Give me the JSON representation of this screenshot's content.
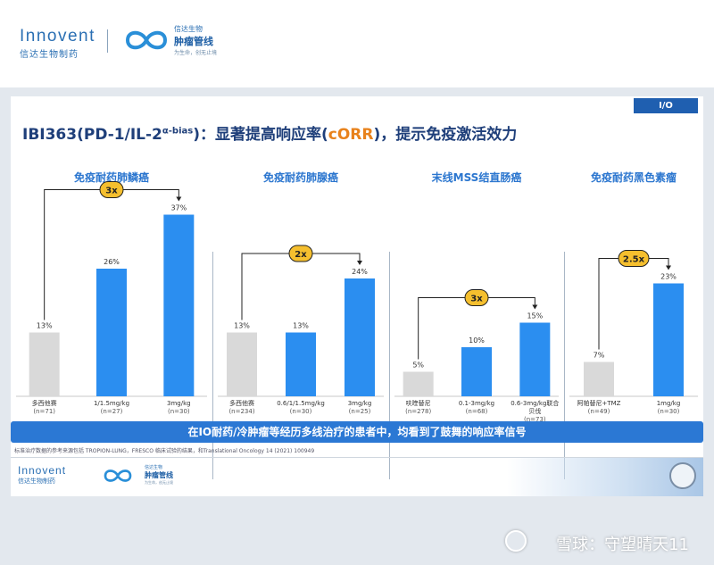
{
  "header": {
    "innovent_logo": "Innovent",
    "innovent_cn": "信达生物制药",
    "oncology_top": "信达生物",
    "oncology_name": "肿瘤管线",
    "oncology_slogan": "为生命，创无止境"
  },
  "slide": {
    "tag": "I/O",
    "headline_part1": "IBI363(PD-1/IL-2",
    "headline_sup": "α-bias",
    "headline_part2": ")：显著提高响应率(",
    "headline_orange": "cORR",
    "headline_part3": ")，提示免疫激活效力",
    "banner": "在IO耐药/冷肿瘤等经历多线治疗的患者中，均看到了鼓舞的响应率信号",
    "footnote": "标准治疗数据的参考来源包括 TROPION-LUNG，FRESCO 临床试验的结果，和Translational Oncology 14 (2021) 100949",
    "footer_innovent": "Innovent",
    "footer_innovent_cn": "信达生物制药",
    "footer_oncology_top": "信达生物",
    "footer_oncology_name": "肿瘤管线",
    "footer_oncology_slogan": "为生命，创无止境"
  },
  "watermark": "雪球：守望晴天11",
  "colors": {
    "comparator_bar": "#d9d9d9",
    "ibi363_bar": "#2b8ef0",
    "badge_fill": "#f5bf2e",
    "title_blue": "#2b76cf",
    "banner": "#2b78d4"
  },
  "chart_data": [
    {
      "type": "bar",
      "title": "免疫耐药肺鳞癌",
      "categories": [
        {
          "label": "多西他赛",
          "n": "(n=71)"
        },
        {
          "label": "1/1.5mg/kg",
          "n": "(n=27)"
        },
        {
          "label": "3mg/kg",
          "n": "(n=30)"
        }
      ],
      "values": [
        13,
        26,
        37
      ],
      "labels": [
        "13%",
        "26%",
        "37%"
      ],
      "fold_change": "3x",
      "ylim": [
        0,
        40
      ]
    },
    {
      "type": "bar",
      "title": "免疫耐药肺腺癌",
      "categories": [
        {
          "label": "多西他赛",
          "n": "(n=234)"
        },
        {
          "label": "0.6/1/1.5mg/kg",
          "n": "(n=30)"
        },
        {
          "label": "3mg/kg",
          "n": "(n=25)"
        }
      ],
      "values": [
        13,
        13,
        24
      ],
      "labels": [
        "13%",
        "13%",
        "24%"
      ],
      "fold_change": "2x",
      "ylim": [
        0,
        40
      ]
    },
    {
      "type": "bar",
      "title": "末线MSS结直肠癌",
      "categories": [
        {
          "label": "呋喹替尼",
          "n": "(n=278)"
        },
        {
          "label": "0.1-3mg/kg",
          "n": "(n=68)"
        },
        {
          "label": "0.6-3mg/kg联合",
          "label2": "贝伐",
          "n": "(n=73)"
        }
      ],
      "values": [
        5,
        10,
        15
      ],
      "labels": [
        "5%",
        "10%",
        "15%"
      ],
      "fold_change": "3x",
      "ylim": [
        0,
        40
      ]
    },
    {
      "type": "bar",
      "title": "免疫耐药黑色素瘤",
      "categories": [
        {
          "label": "阿帕替尼+TMZ",
          "n": "(n=49)"
        },
        {
          "label": "1mg/kg",
          "n": "(n=30)"
        }
      ],
      "values": [
        7,
        23
      ],
      "labels": [
        "7%",
        "23%"
      ],
      "fold_change": "2.5x",
      "ylim": [
        0,
        40
      ]
    }
  ]
}
